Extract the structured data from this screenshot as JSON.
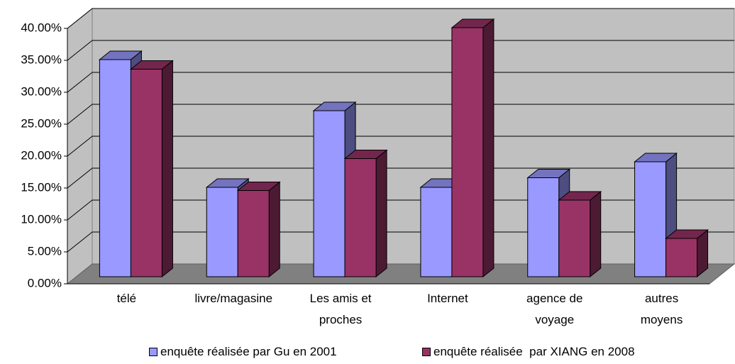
{
  "chart_data": {
    "type": "bar3d",
    "categories": [
      "télé",
      "livre/magasine",
      "Les amis et proches",
      "Internet",
      "agence de voyage",
      "autres moyens"
    ],
    "series": [
      {
        "name": "enquête réalisée par Gu en 2001",
        "color": "#9999ff",
        "values": [
          34,
          14,
          26,
          14,
          15.5,
          18
        ]
      },
      {
        "name": "enquête réalisée  par XIANG en 2008",
        "color": "#993366",
        "values": [
          32.5,
          13.5,
          18.5,
          39,
          12,
          6
        ]
      }
    ],
    "ylim": [
      0,
      40
    ],
    "yticks": [
      {
        "value": 0,
        "label": "0.00%"
      },
      {
        "value": 5,
        "label": "5.00%"
      },
      {
        "value": 10,
        "label": "10.00%"
      },
      {
        "value": 15,
        "label": "15.00%"
      },
      {
        "value": 20,
        "label": "20.00%"
      },
      {
        "value": 25,
        "label": "25.00%"
      },
      {
        "value": 30,
        "label": "30.00%"
      },
      {
        "value": 35,
        "label": "35.00%"
      },
      {
        "value": 40,
        "label": "40.00%"
      }
    ],
    "grid": true
  }
}
